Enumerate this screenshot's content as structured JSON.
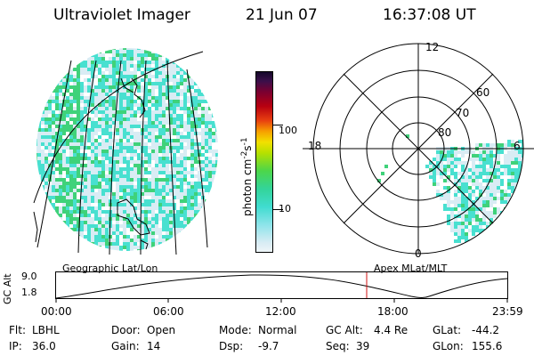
{
  "header": {
    "instrument": "Ultraviolet Imager",
    "date": "21 Jun 07",
    "time": "16:37:08 UT"
  },
  "colorbar": {
    "unit_label": "photon cm",
    "unit_sup1": "-2",
    "unit_mid": "s",
    "unit_sup2": "-1",
    "ticks": [
      "100",
      "10"
    ]
  },
  "polar": {
    "mlt_labels": {
      "top": "12",
      "left": "18",
      "right": "6",
      "bottom": "0"
    },
    "lat_labels": [
      "60",
      "70",
      "80"
    ]
  },
  "map_labels": {
    "geographic": "Geographic Lat/Lon",
    "apex": "Apex MLat/MLT"
  },
  "altitude_plot": {
    "ylabel": "GC Alt",
    "yticks": [
      "9.0",
      "1.8"
    ],
    "xticks": [
      "00:00",
      "06:00",
      "12:00",
      "18:00",
      "23:59"
    ]
  },
  "info": {
    "flt_label": "Flt:",
    "flt_value": "LBHL",
    "ip_label": "IP:",
    "ip_value": "36.0",
    "door_label": "Door:",
    "door_value": "Open",
    "gain_label": "Gain:",
    "gain_value": "14",
    "mode_label": "Mode:",
    "mode_value": "Normal",
    "dsp_label": "Dsp:",
    "dsp_value": "-9.7",
    "gcalt_label": "GC Alt:",
    "gcalt_value": "4.4 Re",
    "seq_label": "Seq:",
    "seq_value": "39",
    "glat_label": "GLat:",
    "glat_value": "-44.2",
    "glon_label": "GLon:",
    "glon_value": "155.6"
  },
  "colors": {
    "speckle_light": "#d9ecf4",
    "speckle_cyan": "#48e0d0",
    "speckle_green": "#3fd27a",
    "cursor": "#d01010"
  }
}
